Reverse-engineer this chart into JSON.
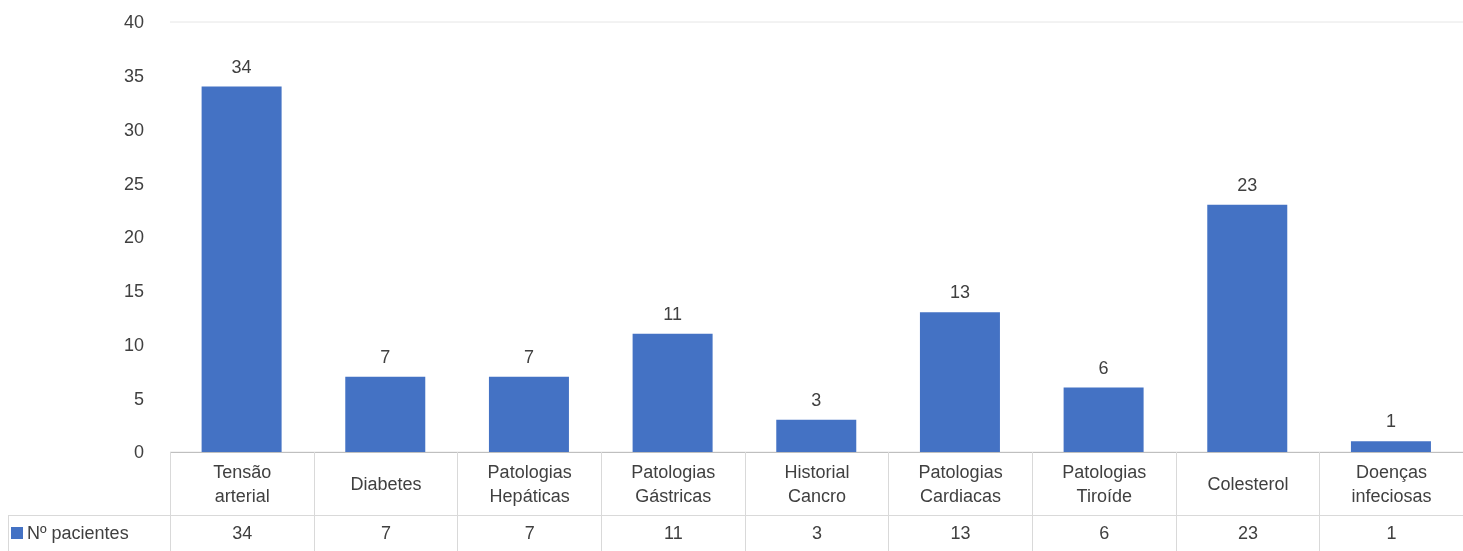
{
  "chart_data": {
    "type": "bar",
    "categories": [
      "Tensão arterial",
      "Diabetes",
      "Patologias Hepáticas",
      "Patologias Gástricas",
      "Historial Cancro",
      "Patologias Cardiacas",
      "Patologias Tiroíde",
      "Colesterol",
      "Doenças infeciosas"
    ],
    "series": [
      {
        "name": "Nº pacientes",
        "color": "#4472c4",
        "values": [
          34,
          7,
          7,
          11,
          3,
          13,
          6,
          23,
          1
        ]
      }
    ],
    "annotations": [
      "34",
      "7",
      "7",
      "11",
      "3",
      "13",
      "6",
      "23",
      "1"
    ],
    "ylim": [
      0,
      40
    ],
    "yticks": [
      0,
      5,
      10,
      15,
      20,
      25,
      30,
      35,
      40
    ],
    "grid": "y",
    "data_labels": true,
    "legend": "bottom left"
  }
}
